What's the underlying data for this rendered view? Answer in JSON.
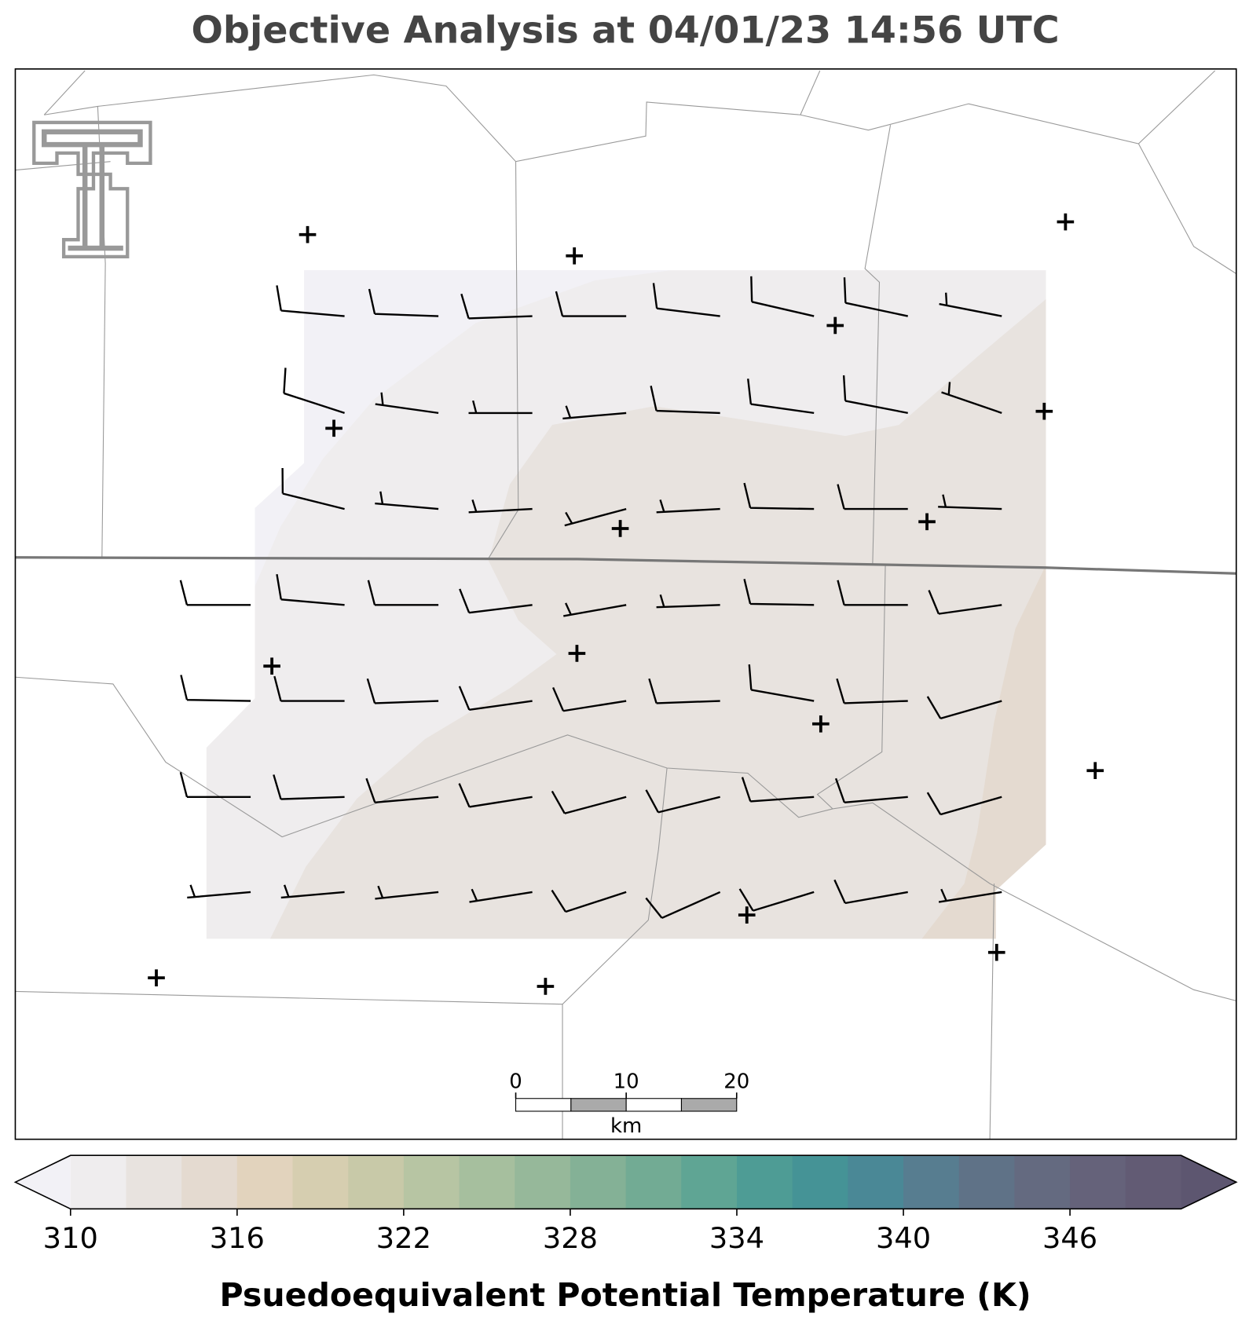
{
  "chart_data": {
    "type": "map",
    "title": "Objective Analysis at 04/01/23 14:56 UTC",
    "wind_barbs": {
      "direction": [
        [
          null,
          275,
          272,
          268,
          270,
          277,
          283,
          282,
          281
        ],
        [
          null,
          288,
          278,
          270,
          265,
          272,
          278,
          281,
          289
        ],
        [
          null,
          284,
          275,
          267,
          255,
          267,
          271,
          270,
          272
        ],
        [
          270,
          275,
          270,
          263,
          260,
          268,
          271,
          270,
          262
        ],
        [
          271,
          270,
          268,
          262,
          261,
          268,
          280,
          268,
          254
        ],
        [
          270,
          268,
          265,
          261,
          255,
          256,
          266,
          265,
          254
        ],
        [
          265,
          265,
          264,
          261,
          252,
          246,
          253,
          260,
          261
        ]
      ],
      "speed": [
        [
          null,
          10,
          10,
          10,
          10,
          10,
          10,
          10,
          5
        ],
        [
          null,
          10,
          5,
          5,
          5,
          10,
          10,
          10,
          5
        ],
        [
          null,
          10,
          5,
          5,
          5,
          5,
          10,
          10,
          5
        ],
        [
          10,
          10,
          10,
          10,
          5,
          5,
          10,
          10,
          10
        ],
        [
          10,
          10,
          10,
          10,
          10,
          10,
          10,
          10,
          10
        ],
        [
          10,
          10,
          10,
          10,
          10,
          10,
          10,
          10,
          10
        ],
        [
          5,
          5,
          5,
          5,
          10,
          10,
          10,
          10,
          5
        ]
      ]
    },
    "colorbar": {
      "label": "Psuedoequivalent Potential Temperature (K)",
      "boundaries": [
        310,
        312,
        314,
        316,
        318,
        320,
        322,
        324,
        326,
        328,
        330,
        332,
        334,
        336,
        338,
        340,
        342,
        344,
        346,
        348,
        350
      ],
      "colors": [
        "#efedee",
        "#e8e3df",
        "#e4dad0",
        "#e2d3bd",
        "#d6ceb0",
        "#c8c9a8",
        "#b7c5a3",
        "#a6bf9e",
        "#96b89a",
        "#84b196",
        "#72ab94",
        "#5fa594",
        "#4e9c95",
        "#459396",
        "#4a8896",
        "#577d90",
        "#5f7287",
        "#646a80",
        "#65627a",
        "#625b74"
      ],
      "under_color": "#f2f1f6",
      "over_color": "#5d5670",
      "ticks": [
        310,
        316,
        322,
        328,
        334,
        340,
        346
      ]
    },
    "scale_bar": {
      "ticks": [
        0,
        10,
        20
      ],
      "unit": "km"
    }
  }
}
